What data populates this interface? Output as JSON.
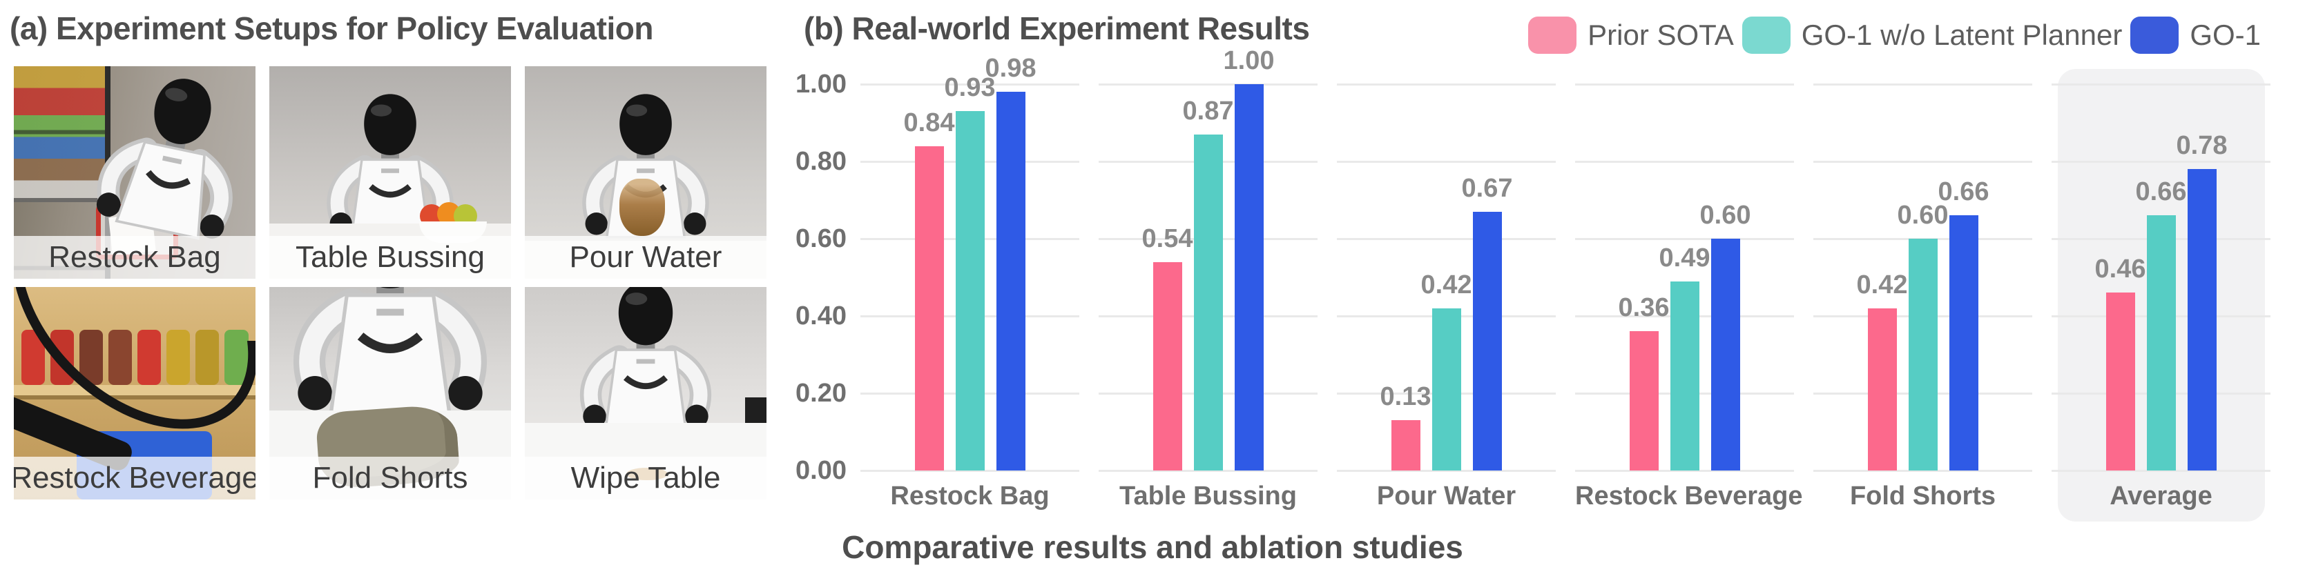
{
  "panel_a": {
    "title": "(a) Experiment Setups for Policy Evaluation",
    "photos": [
      {
        "label": "Restock Bag"
      },
      {
        "label": "Table Bussing"
      },
      {
        "label": "Pour Water"
      },
      {
        "label": "Restock Beverage"
      },
      {
        "label": "Fold Shorts"
      },
      {
        "label": "Wipe Table"
      }
    ]
  },
  "panel_b": {
    "title": "(b) Real-world Experiment Results"
  },
  "caption": "Comparative results and ablation studies",
  "chart_data": {
    "type": "bar",
    "title": "(b) Real-world Experiment Results",
    "categories": [
      "Restock Bag",
      "Table Bussing",
      "Pour Water",
      "Restock Beverage",
      "Fold Shorts",
      "Average"
    ],
    "series": [
      {
        "name": "Prior SOTA",
        "color": "#FC698C",
        "legend_color": "#F992AA",
        "values": [
          0.84,
          0.54,
          0.13,
          0.36,
          0.42,
          0.46
        ]
      },
      {
        "name": "GO-1 w/o Latent Planner",
        "color": "#56CDC4",
        "legend_color": "#7BD9D0",
        "values": [
          0.93,
          0.87,
          0.42,
          0.49,
          0.6,
          0.66
        ]
      },
      {
        "name": "GO-1",
        "color": "#2F5AE6",
        "legend_color": "#3A5BDB",
        "values": [
          0.98,
          1.0,
          0.67,
          0.6,
          0.66,
          0.78
        ]
      }
    ],
    "ylim": [
      0,
      1.0
    ],
    "yticks": [
      0,
      0.2,
      0.4,
      0.6,
      0.8,
      1.0
    ],
    "ytick_format": "two-decimals",
    "grid": true,
    "value_labels": true,
    "legend_position": "top-right",
    "highlight_category": "Average",
    "highlight_bg": "#F2F2F3",
    "text_color": "#6F6F6F",
    "value_label_color": "#8A8A8A",
    "grid_color": "#E9E9E9"
  }
}
